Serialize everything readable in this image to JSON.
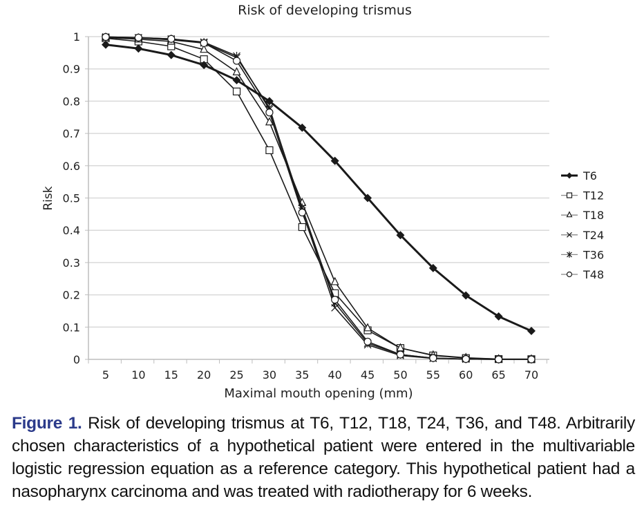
{
  "chart_data": {
    "type": "line",
    "title": "Risk of developing trismus",
    "xlabel": "Maximal mouth opening (mm)",
    "ylabel": "Risk",
    "x": [
      5,
      10,
      15,
      20,
      25,
      30,
      35,
      40,
      45,
      50,
      55,
      60,
      65,
      70
    ],
    "xticks": [
      "5",
      "10",
      "15",
      "20",
      "25",
      "30",
      "35",
      "40",
      "45",
      "50",
      "55",
      "60",
      "65",
      "70"
    ],
    "yticks": [
      "0",
      "0.1",
      "0.2",
      "0.3",
      "0.4",
      "0.5",
      "0.6",
      "0.7",
      "0.8",
      "0.9",
      "1"
    ],
    "ylim": [
      0,
      1
    ],
    "grid": "horizontal",
    "legend_position": "right",
    "series": [
      {
        "name": "T6",
        "marker": "filled-diamond",
        "values": [
          0.975,
          0.963,
          0.943,
          0.912,
          0.865,
          0.8,
          0.718,
          0.615,
          0.5,
          0.385,
          0.283,
          0.198,
          0.133,
          0.088
        ]
      },
      {
        "name": "T12",
        "marker": "open-square",
        "values": [
          0.995,
          0.985,
          0.97,
          0.93,
          0.83,
          0.648,
          0.41,
          0.205,
          0.09,
          0.035,
          0.012,
          0.004,
          0.001,
          0.0005
        ]
      },
      {
        "name": "T18",
        "marker": "open-triangle",
        "values": [
          0.997,
          0.992,
          0.985,
          0.96,
          0.89,
          0.735,
          0.485,
          0.24,
          0.097,
          0.035,
          0.013,
          0.005,
          0.001,
          0.0005
        ]
      },
      {
        "name": "T24",
        "marker": "x",
        "values": [
          0.998,
          0.996,
          0.99,
          0.98,
          0.935,
          0.78,
          0.46,
          0.16,
          0.045,
          0.012,
          0.003,
          0.001,
          0.0,
          0.0
        ]
      },
      {
        "name": "T36",
        "marker": "asterisk",
        "values": [
          0.999,
          0.997,
          0.993,
          0.983,
          0.94,
          0.775,
          0.47,
          0.175,
          0.05,
          0.015,
          0.004,
          0.001,
          0.0,
          0.0
        ]
      },
      {
        "name": "T48",
        "marker": "open-circle",
        "values": [
          0.999,
          0.997,
          0.993,
          0.98,
          0.925,
          0.765,
          0.455,
          0.185,
          0.055,
          0.015,
          0.004,
          0.001,
          0.0,
          0.0
        ]
      }
    ]
  },
  "caption": {
    "label": "Figure 1.",
    "text": " Risk of developing trismus at T6, T12, T18, T24, T36, and T48. Arbitrarily chosen characteristics of a hypothetical patient were entered in the multivariable logistic regression equation as a reference category. This hypothetical patient had a nasopharynx carcinoma and was treated with radiotherapy for 6 weeks."
  },
  "colors": {
    "series_line": "#1a1a1a",
    "grid": "#d9d9d9",
    "caption_label": "#2b3a8a"
  }
}
